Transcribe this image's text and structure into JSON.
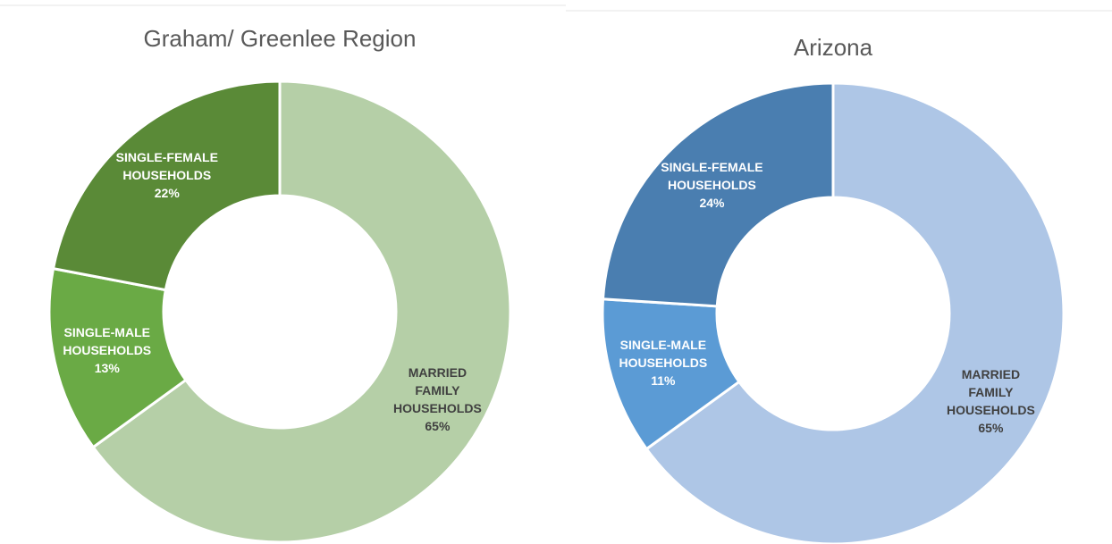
{
  "chart_data": [
    {
      "type": "donut",
      "title": "Graham/ Greenlee Region",
      "categories": [
        "MARRIED FAMILY HOUSEHOLDS",
        "SINGLE-MALE HOUSEHOLDS",
        "SINGLE-FEMALE HOUSEHOLDS"
      ],
      "values": [
        65,
        13,
        22
      ],
      "value_labels": [
        "65%",
        "13%",
        "22%"
      ],
      "colors": [
        "#b5cfa7",
        "#6aaa45",
        "#5a8a37"
      ]
    },
    {
      "type": "donut",
      "title": "Arizona",
      "categories": [
        "MARRIED FAMILY HOUSEHOLDS",
        "SINGLE-MALE HOUSEHOLDS",
        "SINGLE-FEMALE HOUSEHOLDS"
      ],
      "values": [
        65,
        11,
        24
      ],
      "value_labels": [
        "65%",
        "11%",
        "24%"
      ],
      "colors": [
        "#aec6e6",
        "#5b9bd5",
        "#4a7eb0"
      ]
    }
  ]
}
